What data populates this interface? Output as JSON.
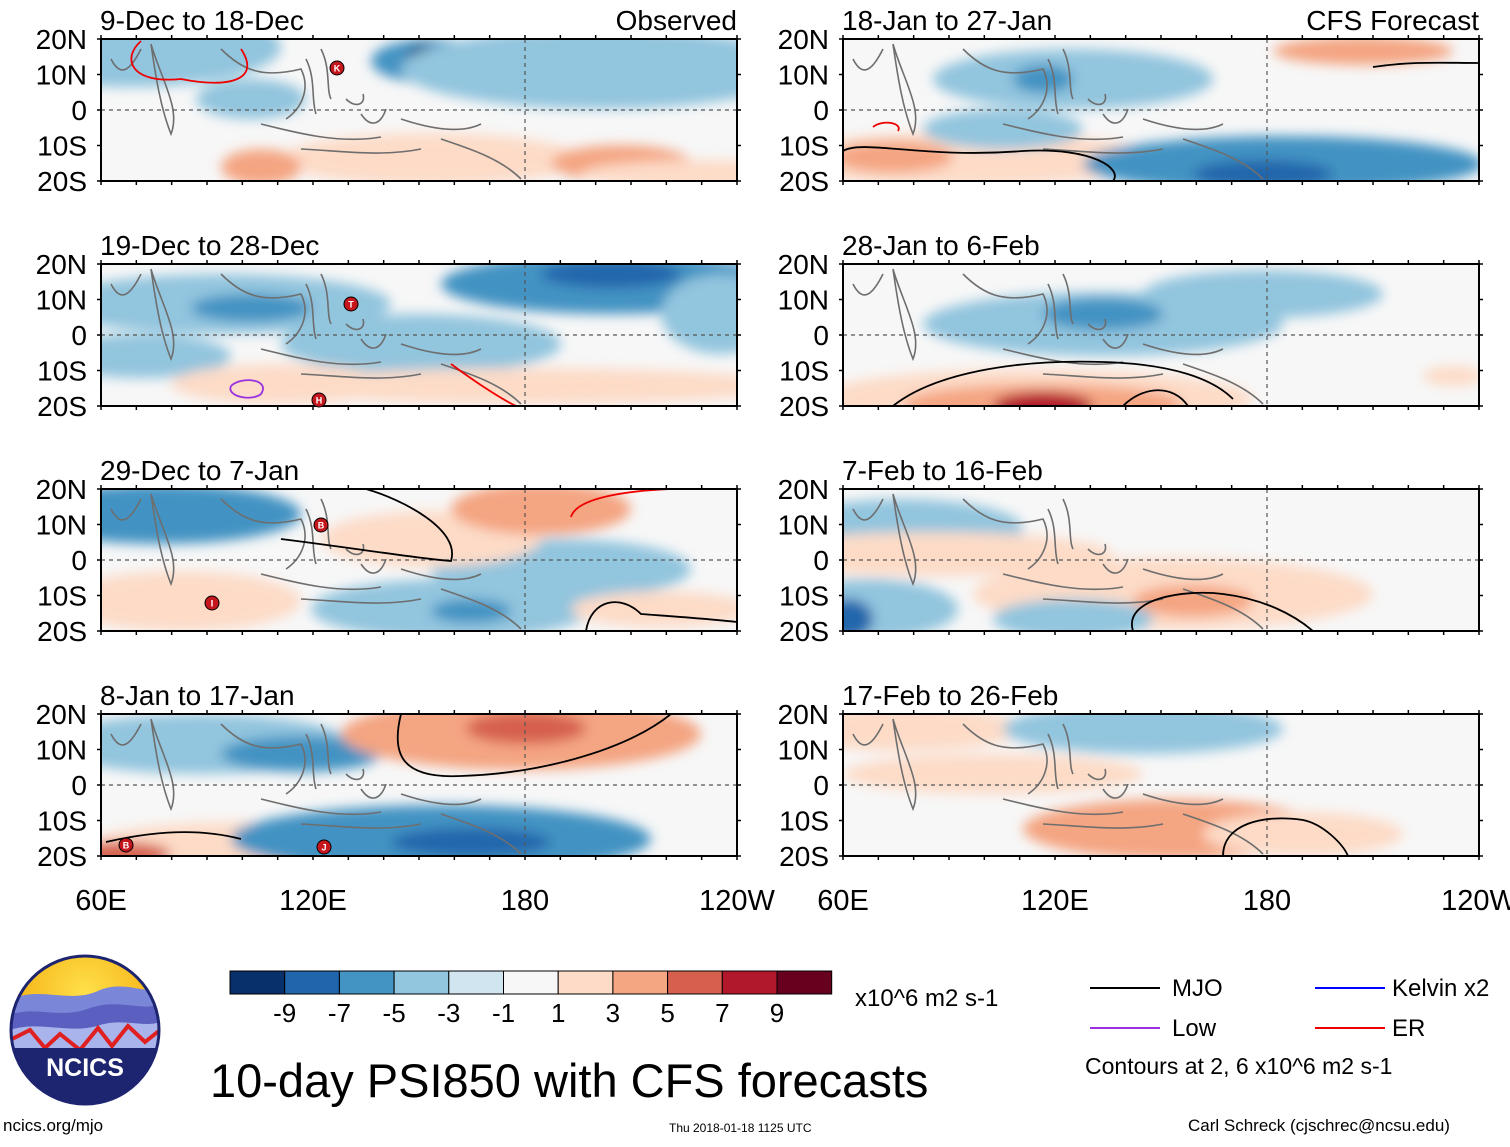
{
  "figure": {
    "title": "10-day PSI850 with CFS forecasts",
    "observed_label": "Observed",
    "forecast_label": "CFS Forecast",
    "x_ticks": [
      "60E",
      "120E",
      "180",
      "120W"
    ],
    "y_ticks": [
      "20N",
      "10N",
      "0",
      "10S",
      "20S"
    ]
  },
  "panels": [
    {
      "id": "obs-1",
      "period": "9-Dec to 18-Dec",
      "column": "observed"
    },
    {
      "id": "obs-2",
      "period": "19-Dec to 28-Dec",
      "column": "observed"
    },
    {
      "id": "obs-3",
      "period": "29-Dec to 7-Jan",
      "column": "observed"
    },
    {
      "id": "obs-4",
      "period": "8-Jan to 17-Jan",
      "column": "observed"
    },
    {
      "id": "fc-1",
      "period": "18-Jan to 27-Jan",
      "column": "forecast"
    },
    {
      "id": "fc-2",
      "period": "28-Jan to 6-Feb",
      "column": "forecast"
    },
    {
      "id": "fc-3",
      "period": "7-Feb to 16-Feb",
      "column": "forecast"
    },
    {
      "id": "fc-4",
      "period": "17-Feb to 26-Feb",
      "column": "forecast"
    }
  ],
  "storm_markers": [
    {
      "panel": 0,
      "letter": "K"
    },
    {
      "panel": 1,
      "letter": "T"
    },
    {
      "panel": 1,
      "letter": "H"
    },
    {
      "panel": 2,
      "letter": "B"
    },
    {
      "panel": 2,
      "letter": "I"
    },
    {
      "panel": 3,
      "letter": "B"
    },
    {
      "panel": 3,
      "letter": "J"
    }
  ],
  "colorbar": {
    "labels": [
      "-9",
      "-7",
      "-5",
      "-3",
      "-1",
      "1",
      "3",
      "5",
      "7",
      "9"
    ],
    "colors": [
      "#08306b",
      "#2166ac",
      "#4393c3",
      "#92c5de",
      "#d1e5f0",
      "#f7f7f7",
      "#fddbc7",
      "#f4a582",
      "#d6604d",
      "#b2182b",
      "#67001f"
    ],
    "units": "x10^6 m2 s-1"
  },
  "legend": {
    "items": [
      {
        "label": "MJO",
        "color": "#000000"
      },
      {
        "label": "Kelvin x2",
        "color": "#0000ff"
      },
      {
        "label": "Low",
        "color": "#9a30e0"
      },
      {
        "label": "ER",
        "color": "#ee0000"
      }
    ],
    "contours_note": "Contours at 2, 6 x10^6 m2 s-1"
  },
  "footer": {
    "org": "NCICS",
    "site": "ncics.org/mjo",
    "timestamp": "Thu 2018-01-18 1125 UTC",
    "credit": "Carl Schreck (cjschrec@ncsu.edu)"
  }
}
